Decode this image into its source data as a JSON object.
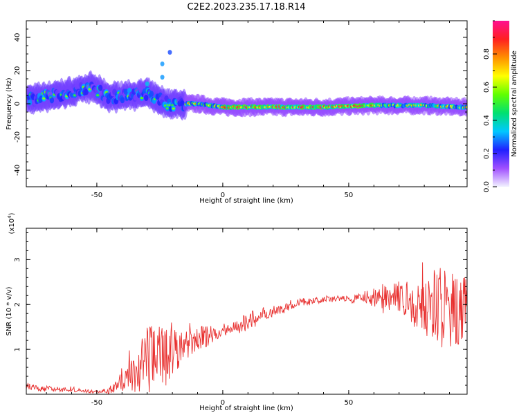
{
  "figure": {
    "title": "C2E2.2023.235.17.18.R14"
  },
  "colors": {
    "snr_line": "#e8302f",
    "colorbar_stops": [
      "#f2f2ff",
      "#a050ff",
      "#2020ff",
      "#00c8ff",
      "#00e070",
      "#60ff00",
      "#ffff00",
      "#ff9000",
      "#ff2020",
      "#ff1090"
    ]
  },
  "chart_data": [
    {
      "type": "heatmap",
      "title": "",
      "xlabel": "Height of straight line (km)",
      "ylabel": "Frequency (Hz)",
      "xlim": [
        -78,
        97
      ],
      "ylim": [
        -50,
        50
      ],
      "xticks": [
        "-50",
        "0",
        "50"
      ],
      "yticks": [
        "40",
        "20",
        "0",
        "-20",
        "-40"
      ],
      "colorbar": {
        "label": "Normalized spectral amplitude",
        "range": [
          0,
          1
        ],
        "ticks": [
          "0.0",
          "0.2",
          "0.4",
          "0.6",
          "0.8"
        ]
      },
      "band": {
        "description_points": [
          {
            "x": -75,
            "f": 3
          },
          {
            "x": -60,
            "f": 7
          },
          {
            "x": -52,
            "f": 10
          },
          {
            "x": -45,
            "f": 4
          },
          {
            "x": -30,
            "f": 6
          },
          {
            "x": -22,
            "f": 0
          },
          {
            "x": -10,
            "f": 0
          },
          {
            "x": 0,
            "f": -2
          },
          {
            "x": 20,
            "f": -2
          },
          {
            "x": 40,
            "f": -2
          },
          {
            "x": 60,
            "f": -1
          },
          {
            "x": 80,
            "f": -1
          },
          {
            "x": 95,
            "f": -2
          }
        ],
        "outliers": [
          {
            "x": -21,
            "f": 31,
            "a": 0.25
          },
          {
            "x": -24,
            "f": 24,
            "a": 0.3
          },
          {
            "x": -24,
            "f": 16,
            "a": 0.3
          },
          {
            "x": -30,
            "f": 12,
            "a": 0.35
          }
        ]
      }
    },
    {
      "type": "line",
      "title": "",
      "xlabel": "Height of straight line (km)",
      "ylabel": "SNR (10 * v/v)",
      "y_multiplier": "(x10^4)",
      "xlim": [
        -78,
        97
      ],
      "ylim": [
        0,
        3.7
      ],
      "xticks": [
        "-50",
        "0",
        "50"
      ],
      "yticks": [
        "1",
        "2",
        "3"
      ],
      "series": [
        {
          "name": "",
          "envelope": [
            {
              "x": -78,
              "y": 0.18
            },
            {
              "x": -70,
              "y": 0.12
            },
            {
              "x": -60,
              "y": 0.1
            },
            {
              "x": -50,
              "y": 0.05
            },
            {
              "x": -45,
              "y": 0.1
            },
            {
              "x": -40,
              "y": 0.3
            },
            {
              "x": -35,
              "y": 0.5
            },
            {
              "x": -30,
              "y": 0.8
            },
            {
              "x": -25,
              "y": 0.9
            },
            {
              "x": -20,
              "y": 0.95
            },
            {
              "x": -15,
              "y": 1.1
            },
            {
              "x": -10,
              "y": 1.25
            },
            {
              "x": -5,
              "y": 1.3
            },
            {
              "x": 0,
              "y": 1.45
            },
            {
              "x": 5,
              "y": 1.5
            },
            {
              "x": 10,
              "y": 1.6
            },
            {
              "x": 15,
              "y": 1.8
            },
            {
              "x": 20,
              "y": 1.85
            },
            {
              "x": 25,
              "y": 1.95
            },
            {
              "x": 30,
              "y": 2.05
            },
            {
              "x": 35,
              "y": 2.08
            },
            {
              "x": 40,
              "y": 2.1
            },
            {
              "x": 45,
              "y": 2.12
            },
            {
              "x": 50,
              "y": 2.1
            },
            {
              "x": 55,
              "y": 2.15
            },
            {
              "x": 60,
              "y": 2.2
            },
            {
              "x": 65,
              "y": 2.1
            },
            {
              "x": 70,
              "y": 2.1
            },
            {
              "x": 75,
              "y": 2.05
            },
            {
              "x": 80,
              "y": 2.0
            },
            {
              "x": 85,
              "y": 2.0
            },
            {
              "x": 90,
              "y": 1.9
            },
            {
              "x": 95,
              "y": 1.9
            },
            {
              "x": 97,
              "y": 2.0
            }
          ],
          "noise": [
            {
              "x": -78,
              "n": 0.08
            },
            {
              "x": -60,
              "n": 0.05
            },
            {
              "x": -48,
              "n": 0.03
            },
            {
              "x": -40,
              "n": 0.25
            },
            {
              "x": -30,
              "n": 0.7
            },
            {
              "x": -22,
              "n": 0.8
            },
            {
              "x": -15,
              "n": 0.35
            },
            {
              "x": 0,
              "n": 0.15
            },
            {
              "x": 10,
              "n": 0.2
            },
            {
              "x": 20,
              "n": 0.12
            },
            {
              "x": 40,
              "n": 0.06
            },
            {
              "x": 55,
              "n": 0.1
            },
            {
              "x": 62,
              "n": 0.3
            },
            {
              "x": 75,
              "n": 0.5
            },
            {
              "x": 85,
              "n": 0.9
            },
            {
              "x": 95,
              "n": 0.8
            }
          ]
        }
      ]
    }
  ]
}
